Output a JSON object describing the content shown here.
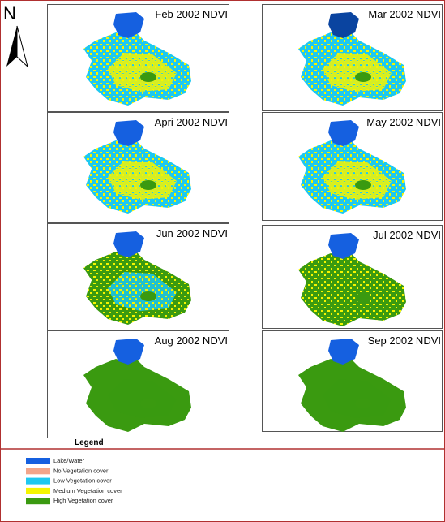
{
  "north": "N",
  "panels": [
    {
      "title": "Feb 2002 NDVI"
    },
    {
      "title": "Mar 2002 NDVI"
    },
    {
      "title": "Apri 2002 NDVI"
    },
    {
      "title": "May 2002 NDVI"
    },
    {
      "title": "Jun 2002 NDVI"
    },
    {
      "title": "Jul 2002 NDVI"
    },
    {
      "title": "Aug 2002 NDVI"
    },
    {
      "title": "Sep 2002 NDVI"
    }
  ],
  "legend": {
    "title": "Legend",
    "items": [
      {
        "label": "Lake/Water",
        "color": "#1560e0"
      },
      {
        "label": "No Vegetation cover",
        "color": "#f2a58a"
      },
      {
        "label": "Low Vegetation cover",
        "color": "#1ec8f0"
      },
      {
        "label": "Medium Vegetation cover",
        "color": "#f5f500"
      },
      {
        "label": "High Vegetation cover",
        "color": "#3a9a10"
      }
    ]
  }
}
